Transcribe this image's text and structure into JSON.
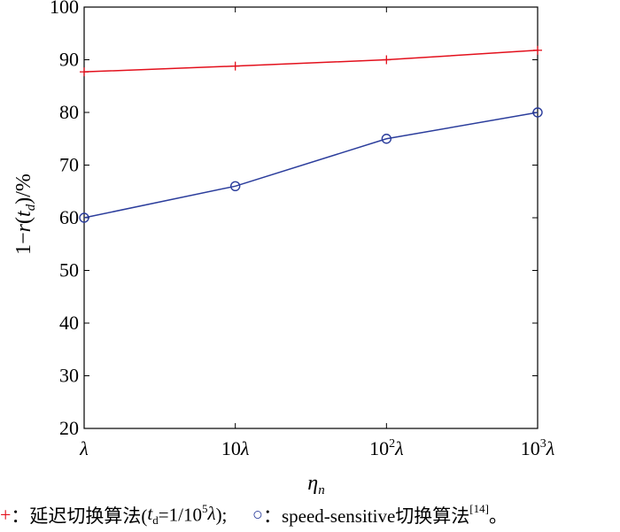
{
  "chart_data": {
    "type": "line",
    "categories": [
      "λ",
      "10λ",
      "10²λ",
      "10³λ"
    ],
    "category_labels": [
      {
        "base": "",
        "exp": "",
        "tail": "λ"
      },
      {
        "base": "10",
        "exp": "",
        "tail": "λ"
      },
      {
        "base": "10",
        "exp": "2",
        "tail": "λ"
      },
      {
        "base": "10",
        "exp": "3",
        "tail": "λ"
      }
    ],
    "series": [
      {
        "values": [
          87.7,
          88.8,
          90.0,
          91.8
        ],
        "color": "#e3101c",
        "marker": "plus"
      },
      {
        "values": [
          60.0,
          66.0,
          75.0,
          80.0
        ],
        "color": "#2b3d9c",
        "marker": "circle"
      }
    ],
    "ylim": [
      20,
      100
    ],
    "yticks": [
      20,
      30,
      40,
      50,
      60,
      70,
      80,
      90,
      100
    ],
    "grid": false,
    "xlabel": {
      "main": "η",
      "sub": "n"
    },
    "ylabel": {
      "pre": "1−",
      "var": "r",
      "paren_open": "(",
      "t": "t",
      "t_sub": "d",
      "paren_close": ")/%"
    }
  },
  "legend": {
    "item1": {
      "marker": "+",
      "text1": "：延迟切换算法(",
      "t": "t",
      "t_sub": "d",
      "text2": "=1/10",
      "exp": "5",
      "lam": "λ",
      "text3": ");"
    },
    "item2": {
      "marker": "○",
      "text1": "：speed-sensitive切换算法",
      "ref": "[14]",
      "tail": "。"
    }
  }
}
